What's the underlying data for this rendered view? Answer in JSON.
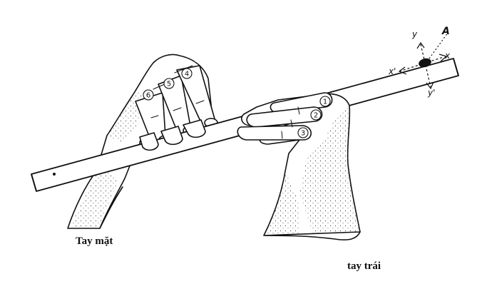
{
  "labels": {
    "right_hand": "Tay mặt",
    "left_hand": "tay trái"
  },
  "finger_numbers": {
    "right_hand": [
      "4",
      "5",
      "6"
    ],
    "left_hand": [
      "1",
      "2",
      "3"
    ]
  },
  "axes": {
    "point": "A",
    "x": "x",
    "x_prime": "x'",
    "y": "y",
    "y_prime": "y'"
  },
  "colors": {
    "ink": "#111111",
    "paper": "#ffffff"
  }
}
